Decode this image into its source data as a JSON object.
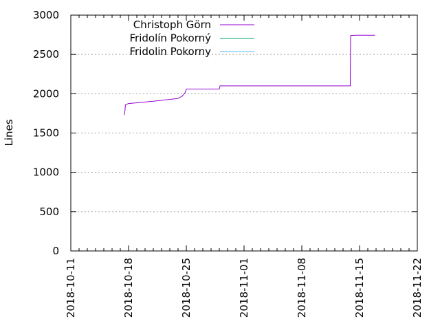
{
  "chart_data": {
    "type": "line",
    "ylabel": "Lines",
    "xlabel": "",
    "xlim": [
      "2018-10-11",
      "2018-11-22"
    ],
    "ylim": [
      0,
      3000
    ],
    "x_ticks": [
      "2018-10-11",
      "2018-10-18",
      "2018-10-25",
      "2018-11-01",
      "2018-11-08",
      "2018-11-15",
      "2018-11-22"
    ],
    "y_ticks": [
      0,
      500,
      1000,
      1500,
      2000,
      2500,
      3000
    ],
    "grid": true,
    "legend": "top-left",
    "series": [
      {
        "name": "Christoph Görn",
        "color": "#9400d3",
        "points": [
          [
            "2018-10-17T12:00",
            1730
          ],
          [
            "2018-10-17T13:30",
            1790
          ],
          [
            "2018-10-17T15:00",
            1860
          ],
          [
            "2018-10-18T00:00",
            1875
          ],
          [
            "2018-10-21T00:00",
            1905
          ],
          [
            "2018-10-24T00:00",
            1940
          ],
          [
            "2018-10-24T12:00",
            1970
          ],
          [
            "2018-10-24T20:00",
            2010
          ],
          [
            "2018-10-25T00:00",
            2060
          ],
          [
            "2018-10-29T00:00",
            2060
          ],
          [
            "2018-10-29T02:00",
            2100
          ],
          [
            "2018-11-13T21:00",
            2100
          ],
          [
            "2018-11-13T22:00",
            2740
          ],
          [
            "2018-11-14T12:00",
            2745
          ],
          [
            "2018-11-16T21:00",
            2745
          ]
        ]
      },
      {
        "name": "Fridolín Pokorný",
        "color": "#009e73",
        "points": []
      },
      {
        "name": "Fridolin Pokorny",
        "color": "#56b4e9",
        "points": []
      }
    ]
  }
}
